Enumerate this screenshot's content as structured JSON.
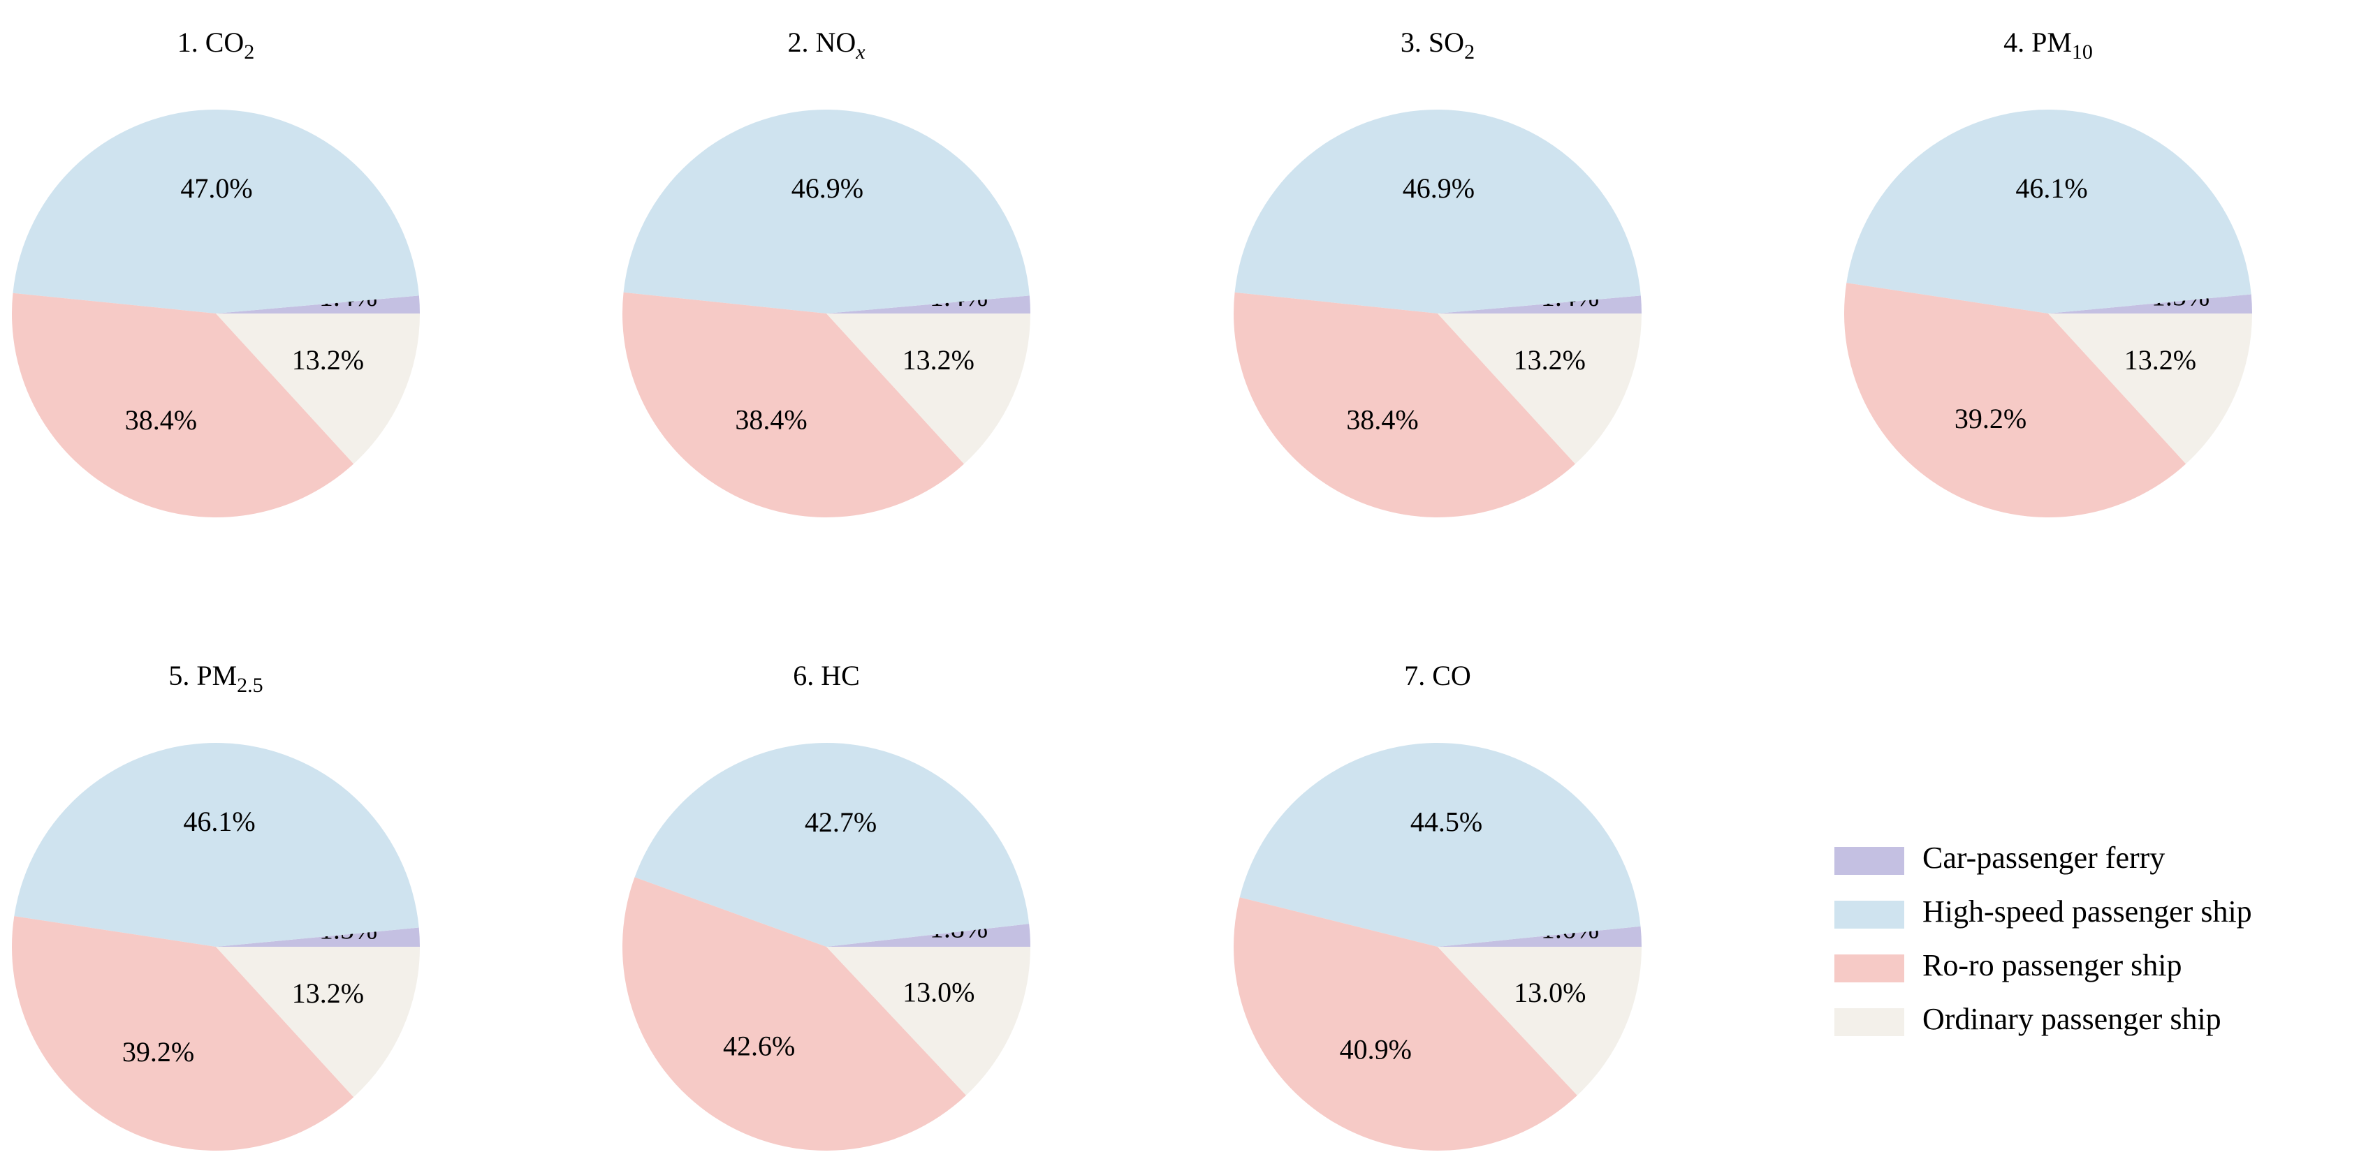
{
  "chart_data": {
    "type": "pie",
    "colors": {
      "Car-passenger ferry": "#c4c0e2",
      "High-speed passenger ship": "#cfe3ef",
      "Ro-ro passenger ship": "#f6cac6",
      "Ordinary passenger ship": "#f3f0ea"
    },
    "legend": {
      "placement": "bottom-right",
      "entries": [
        "Car-passenger ferry",
        "High-speed passenger ship",
        "Ro-ro passenger ship",
        "Ordinary passenger ship"
      ]
    },
    "slice_order": [
      "Car-passenger ferry",
      "High-speed passenger ship",
      "Ro-ro passenger ship",
      "Ordinary passenger ship"
    ],
    "pies": [
      {
        "title": "1. CO",
        "title_sub": "2",
        "title_sub_style": "",
        "slices": [
          {
            "category": "Car-passenger ferry",
            "value": 1.4,
            "label": "1.4%"
          },
          {
            "category": "High-speed passenger ship",
            "value": 47.0,
            "label": "47.0%"
          },
          {
            "category": "Ro-ro passenger ship",
            "value": 38.4,
            "label": "38.4%"
          },
          {
            "category": "Ordinary passenger ship",
            "value": 13.2,
            "label": "13.2%"
          }
        ]
      },
      {
        "title": "2. NO",
        "title_sub": "x",
        "title_sub_style": "italic",
        "slices": [
          {
            "category": "Car-passenger ferry",
            "value": 1.4,
            "label": "1.4%"
          },
          {
            "category": "High-speed passenger ship",
            "value": 46.9,
            "label": "46.9%"
          },
          {
            "category": "Ro-ro passenger ship",
            "value": 38.4,
            "label": "38.4%"
          },
          {
            "category": "Ordinary passenger ship",
            "value": 13.2,
            "label": "13.2%"
          }
        ]
      },
      {
        "title": "3. SO",
        "title_sub": "2",
        "title_sub_style": "",
        "slices": [
          {
            "category": "Car-passenger ferry",
            "value": 1.4,
            "label": "1.4%"
          },
          {
            "category": "High-speed passenger ship",
            "value": 46.9,
            "label": "46.9%"
          },
          {
            "category": "Ro-ro passenger ship",
            "value": 38.4,
            "label": "38.4%"
          },
          {
            "category": "Ordinary passenger ship",
            "value": 13.2,
            "label": "13.2%"
          }
        ]
      },
      {
        "title": "4. PM",
        "title_sub": "10",
        "title_sub_style": "",
        "slices": [
          {
            "category": "Car-passenger ferry",
            "value": 1.5,
            "label": "1.5%"
          },
          {
            "category": "High-speed passenger ship",
            "value": 46.1,
            "label": "46.1%"
          },
          {
            "category": "Ro-ro passenger ship",
            "value": 39.2,
            "label": "39.2%"
          },
          {
            "category": "Ordinary passenger ship",
            "value": 13.2,
            "label": "13.2%"
          }
        ]
      },
      {
        "title": "5. PM",
        "title_sub": "2.5",
        "title_sub_style": "",
        "slices": [
          {
            "category": "Car-passenger ferry",
            "value": 1.5,
            "label": "1.5%"
          },
          {
            "category": "High-speed passenger ship",
            "value": 46.1,
            "label": "46.1%"
          },
          {
            "category": "Ro-ro passenger ship",
            "value": 39.2,
            "label": "39.2%"
          },
          {
            "category": "Ordinary passenger ship",
            "value": 13.2,
            "label": "13.2%"
          }
        ]
      },
      {
        "title": "6. HC",
        "title_sub": "",
        "title_sub_style": "",
        "slices": [
          {
            "category": "Car-passenger ferry",
            "value": 1.8,
            "label": "1.8%"
          },
          {
            "category": "High-speed passenger ship",
            "value": 42.7,
            "label": "42.7%"
          },
          {
            "category": "Ro-ro passenger ship",
            "value": 42.6,
            "label": "42.6%"
          },
          {
            "category": "Ordinary passenger ship",
            "value": 13.0,
            "label": "13.0%"
          }
        ]
      },
      {
        "title": "7. CO",
        "title_sub": "",
        "title_sub_style": "",
        "slices": [
          {
            "category": "Car-passenger ferry",
            "value": 1.6,
            "label": "1.6%"
          },
          {
            "category": "High-speed passenger ship",
            "value": 44.5,
            "label": "44.5%"
          },
          {
            "category": "Ro-ro passenger ship",
            "value": 40.9,
            "label": "40.9%"
          },
          {
            "category": "Ordinary passenger ship",
            "value": 13.0,
            "label": "13.0%"
          }
        ]
      }
    ]
  }
}
